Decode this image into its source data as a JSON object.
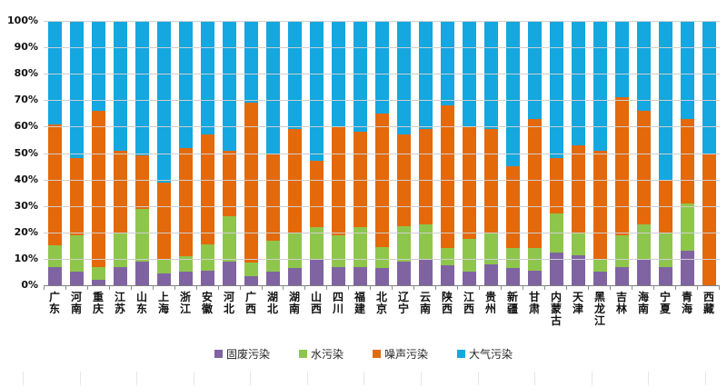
{
  "chart_data": {
    "type": "bar",
    "stacked": true,
    "percent_stacked": true,
    "title": "",
    "xlabel": "",
    "ylabel": "",
    "ylim": [
      0,
      100
    ],
    "ytick_step": 10,
    "ytick_labels": [
      "0%",
      "10%",
      "20%",
      "30%",
      "40%",
      "50%",
      "60%",
      "70%",
      "80%",
      "90%",
      "100%"
    ],
    "grid": true,
    "legend_position": "bottom",
    "categories": [
      "广东",
      "河南",
      "重庆",
      "江苏",
      "山东",
      "上海",
      "浙江",
      "安徽",
      "河北",
      "广西",
      "湖北",
      "湖南",
      "山西",
      "四川",
      "福建",
      "北京",
      "辽宁",
      "云南",
      "陕西",
      "江西",
      "贵州",
      "新疆",
      "甘肃",
      "内蒙古",
      "天津",
      "黑龙江",
      "吉林",
      "海南",
      "宁夏",
      "青海",
      "西藏"
    ],
    "series": [
      {
        "name": "固废污染",
        "color": "#8064A2",
        "values": [
          7,
          5,
          2,
          7,
          9,
          4.5,
          5,
          5.5,
          9,
          3.5,
          5,
          6.5,
          10,
          7,
          7,
          6.5,
          9,
          10,
          7.5,
          5,
          8,
          6.5,
          5.5,
          12.5,
          11.5,
          5,
          7,
          10,
          7,
          13,
          0
        ]
      },
      {
        "name": "水污染",
        "color": "#8EC64C",
        "values": [
          8,
          14,
          5,
          13,
          20,
          5.5,
          6,
          10,
          17,
          5,
          12,
          13.5,
          12,
          12,
          15,
          8,
          13.5,
          13,
          6.5,
          12.5,
          11.5,
          7.5,
          8.5,
          14.5,
          8,
          5,
          12,
          13,
          13,
          18,
          0
        ]
      },
      {
        "name": "噪声污染",
        "color": "#E4690B",
        "values": [
          46,
          29,
          59,
          31,
          20,
          29,
          41,
          41.5,
          25,
          60.5,
          33,
          39,
          25,
          41,
          36,
          50.5,
          34.5,
          36,
          54,
          42.5,
          39.5,
          31,
          49,
          21,
          33.5,
          41,
          52,
          43,
          20,
          32,
          49.5
        ]
      },
      {
        "name": "大气污染",
        "color": "#14A7E0",
        "values": [
          39,
          52,
          34,
          49,
          51,
          61,
          48,
          43,
          49,
          31,
          50,
          41,
          53,
          40,
          42,
          35,
          43,
          41,
          32,
          40,
          41,
          55,
          37,
          52,
          47,
          49,
          29,
          34,
          60,
          37,
          50.5
        ]
      }
    ]
  },
  "style_colors": {
    "gridline": "#cfcfcf",
    "axis_line": "#7f7f7f",
    "tick": "#8c8c8c",
    "faint_bottom_tick": "#e6e6e6",
    "label_text": "#111111"
  }
}
